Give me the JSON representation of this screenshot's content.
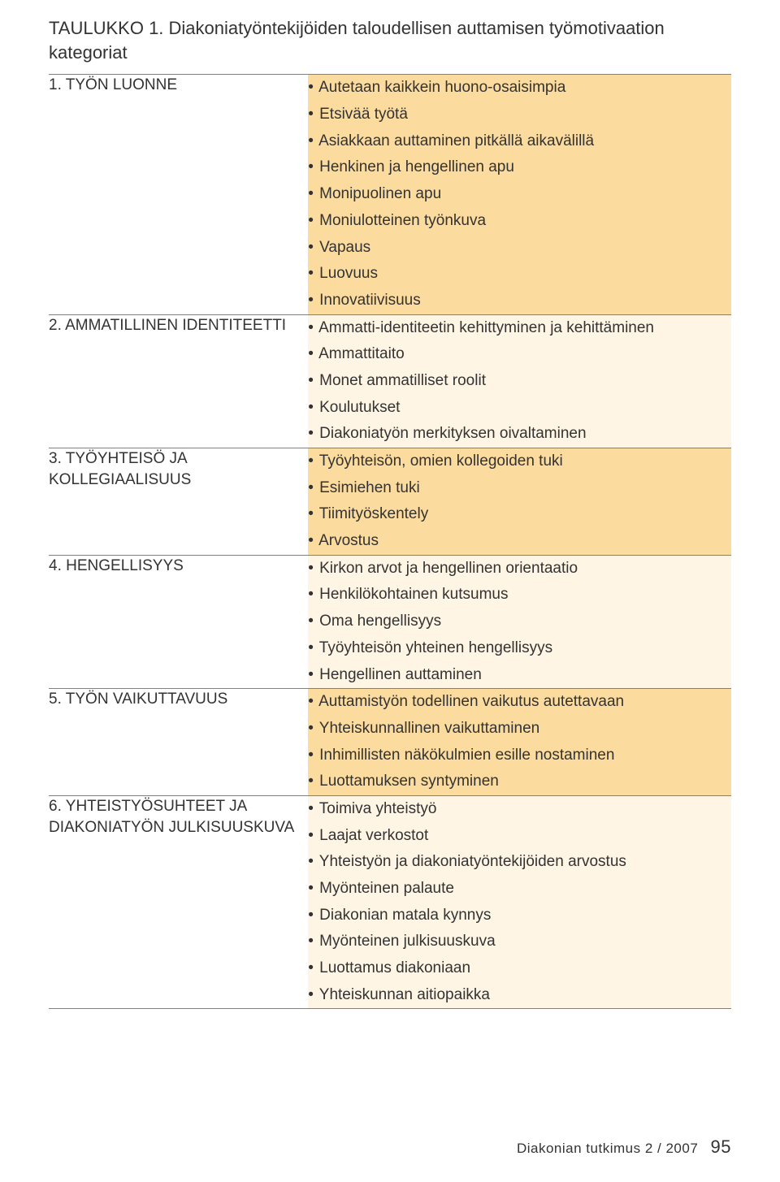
{
  "title": "TAULUKKO 1. Diakoniatyöntekijöiden taloudellisen auttamisen työmotivaation kategoriat",
  "rows": [
    {
      "category": "1. TYÖN LUONNE",
      "items": [
        "Autetaan kaikkein huono-osaisimpia",
        "Etsivää työtä",
        "Asiakkaan auttaminen pitkällä aikavälillä",
        "Henkinen ja hengellinen apu",
        "Monipuolinen apu",
        "Moniulotteinen työnkuva",
        "Vapaus",
        "Luovuus",
        "Innovatiivisuus"
      ]
    },
    {
      "category": "2. AMMATILLINEN IDENTITEETTI",
      "items": [
        "Ammatti-identiteetin kehittyminen ja kehittäminen",
        "Ammattitaito",
        "Monet ammatilliset roolit",
        "Koulutukset",
        "Diakoniatyön merkityksen oivaltaminen"
      ]
    },
    {
      "category": "3. TYÖYHTEISÖ JA KOLLEGIAALISUUS",
      "items": [
        "Työyhteisön, omien kollegoiden tuki",
        "Esimiehen tuki",
        "Tiimityöskentely",
        "Arvostus"
      ]
    },
    {
      "category": "4. HENGELLISYYS",
      "items": [
        "Kirkon arvot ja hengellinen orientaatio",
        "Henkilökohtainen kutsumus",
        "Oma hengellisyys",
        "Työyhteisön yhteinen hengellisyys",
        "Hengellinen auttaminen"
      ]
    },
    {
      "category": "5. TYÖN VAIKUTTAVUUS",
      "items": [
        "Auttamistyön todellinen vaikutus autettavaan",
        "Yhteiskunnallinen vaikuttaminen",
        "Inhimillisten näkökulmien esille nostaminen",
        "Luottamuksen syntyminen"
      ]
    },
    {
      "category": "6. YHTEISTYÖSUHTEET JA DIAKONIATYÖN JULKISUUSKUVA",
      "items": [
        "Toimiva yhteistyö",
        "Laajat verkostot",
        "Yhteistyön ja diakoniatyöntekijöiden arvostus",
        "Myönteinen palaute",
        "Diakonian matala kynnys",
        "Myönteinen julkisuuskuva",
        "Luottamus diakoniaan",
        "Yhteiskunnan aitiopaikka"
      ]
    }
  ],
  "colors": {
    "band_odd": "#fcdb9e",
    "band_even": "#fff5e5",
    "border": "#808080",
    "text": "#333333",
    "background": "#ffffff"
  },
  "typography": {
    "title_fontsize": 22,
    "category_fontsize": 19,
    "item_fontsize": 19,
    "footer_fontsize": 17,
    "pagenum_fontsize": 22
  },
  "table_layout": {
    "category_col_width_pct": 38,
    "items_col_width_pct": 62
  },
  "footer": {
    "journal": "Diakonian tutkimus",
    "issue": "2 / 2007",
    "page": "95"
  }
}
